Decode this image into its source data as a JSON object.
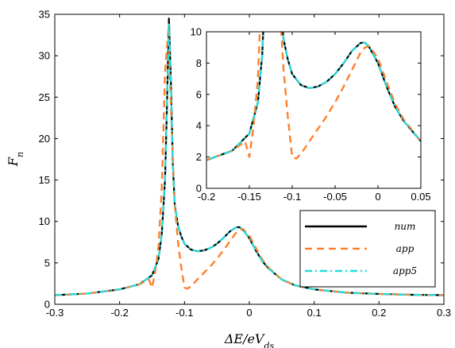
{
  "chart_data": [
    {
      "type": "line",
      "xlabel": "ΔE/eV_ds",
      "ylabel": "F_n",
      "xlim": [
        -0.3,
        0.3
      ],
      "ylim": [
        0,
        35
      ],
      "xticks": [
        "-0.3",
        "-0.2",
        "-0.1",
        "0",
        "0.1",
        "0.2",
        "0.3"
      ],
      "yticks": [
        "0",
        "5",
        "10",
        "15",
        "20",
        "25",
        "30",
        "35"
      ],
      "grid": false,
      "legend_position": "bottom-right",
      "series": [
        {
          "name": "num",
          "color": "#000000",
          "style": "solid",
          "x": [
            -0.3,
            -0.25,
            -0.2,
            -0.17,
            -0.15,
            -0.14,
            -0.135,
            -0.13,
            -0.127,
            -0.124,
            -0.121,
            -0.118,
            -0.115,
            -0.11,
            -0.105,
            -0.1,
            -0.09,
            -0.08,
            -0.07,
            -0.06,
            -0.05,
            -0.04,
            -0.03,
            -0.02,
            -0.015,
            -0.01,
            0.0,
            0.01,
            0.02,
            0.03,
            0.05,
            0.07,
            0.1,
            0.15,
            0.2,
            0.25,
            0.3
          ],
          "y": [
            1.1,
            1.3,
            1.8,
            2.4,
            3.5,
            5.5,
            8.5,
            15.0,
            24.0,
            34.5,
            27.0,
            17.0,
            12.0,
            9.5,
            8.2,
            7.3,
            6.6,
            6.4,
            6.5,
            6.8,
            7.3,
            8.0,
            8.8,
            9.3,
            9.3,
            9.0,
            8.0,
            6.5,
            5.2,
            4.3,
            3.0,
            2.3,
            1.8,
            1.4,
            1.25,
            1.15,
            1.1
          ]
        },
        {
          "name": "app",
          "color": "#ff7f2a",
          "style": "dashed",
          "x": [
            -0.3,
            -0.25,
            -0.2,
            -0.17,
            -0.155,
            -0.15,
            -0.145,
            -0.14,
            -0.135,
            -0.13,
            -0.125,
            -0.12,
            -0.115,
            -0.11,
            -0.105,
            -0.1,
            -0.095,
            -0.09,
            -0.085,
            -0.08,
            -0.07,
            -0.06,
            -0.05,
            -0.04,
            -0.03,
            -0.02,
            -0.015,
            -0.01,
            0.0,
            0.01,
            0.02,
            0.03,
            0.05,
            0.07,
            0.1,
            0.15,
            0.2,
            0.25,
            0.3
          ],
          "y": [
            1.1,
            1.3,
            1.8,
            2.4,
            3.0,
            2.0,
            4.0,
            7.0,
            14.0,
            28.0,
            33.0,
            22.0,
            12.0,
            7.5,
            4.5,
            2.0,
            1.9,
            2.2,
            2.6,
            3.0,
            3.8,
            4.6,
            5.5,
            6.5,
            7.6,
            8.7,
            9.0,
            9.1,
            8.3,
            6.8,
            5.4,
            4.4,
            3.0,
            2.3,
            1.8,
            1.4,
            1.25,
            1.15,
            1.1
          ]
        },
        {
          "name": "app5",
          "color": "#22dddd",
          "style": "dashdot",
          "x": [
            -0.3,
            -0.25,
            -0.2,
            -0.17,
            -0.15,
            -0.14,
            -0.135,
            -0.13,
            -0.127,
            -0.124,
            -0.121,
            -0.118,
            -0.115,
            -0.11,
            -0.105,
            -0.1,
            -0.09,
            -0.08,
            -0.07,
            -0.06,
            -0.05,
            -0.04,
            -0.03,
            -0.02,
            -0.015,
            -0.01,
            0.0,
            0.01,
            0.02,
            0.03,
            0.05,
            0.07,
            0.1,
            0.15,
            0.2,
            0.25,
            0.3
          ],
          "y": [
            1.1,
            1.3,
            1.8,
            2.4,
            3.5,
            5.5,
            8.5,
            15.0,
            24.0,
            34.0,
            27.0,
            17.0,
            12.0,
            9.5,
            8.2,
            7.3,
            6.6,
            6.4,
            6.5,
            6.8,
            7.3,
            8.0,
            8.8,
            9.3,
            9.3,
            9.0,
            8.0,
            6.5,
            5.2,
            4.3,
            3.0,
            2.3,
            1.8,
            1.4,
            1.25,
            1.15,
            1.1
          ]
        }
      ]
    },
    {
      "type": "line",
      "xlim": [
        -0.2,
        0.05
      ],
      "ylim": [
        0,
        10
      ],
      "xticks": [
        "-0.2",
        "-0.15",
        "-0.1",
        "-0.05",
        "0",
        "0.05"
      ],
      "yticks": [
        "0",
        "2",
        "4",
        "6",
        "8",
        "10"
      ],
      "grid": false,
      "series_from_main": true
    }
  ]
}
